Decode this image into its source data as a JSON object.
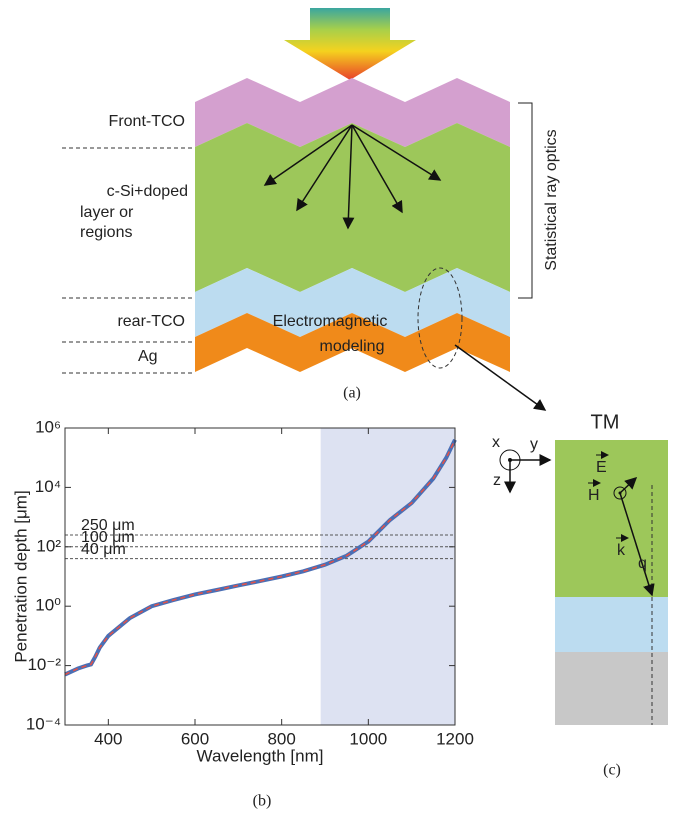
{
  "diagram_a": {
    "labels": [
      "Front-TCO",
      "c-Si+doped",
      "layer or",
      "regions",
      "rear-TCO",
      "Ag"
    ],
    "bracket_label": "Statistical ray optics",
    "em_label": [
      "Electromagnetic",
      "modeling"
    ],
    "caption": "(a)"
  },
  "chart_data": {
    "type": "line",
    "title": null,
    "x_label": "Wavelength [nm]",
    "y_label": "Penetration depth [μm]",
    "x": [
      300,
      330,
      350,
      360,
      370,
      380,
      400,
      450,
      500,
      550,
      600,
      650,
      700,
      750,
      800,
      850,
      900,
      950,
      1000,
      1050,
      1100,
      1150,
      1180,
      1200
    ],
    "values": [
      0.005,
      0.008,
      0.01,
      0.011,
      0.02,
      0.04,
      0.1,
      0.4,
      1,
      1.6,
      2.5,
      3.5,
      5,
      7,
      10,
      15,
      25,
      50,
      150,
      800,
      3000,
      20000,
      100000,
      400000
    ],
    "color": "#4a6fb5",
    "dash_color": "#e0524a",
    "xlim": [
      300,
      1200
    ],
    "xticks": [
      400,
      600,
      800,
      1000,
      1200
    ],
    "ylim": [
      0.0001,
      1000000
    ],
    "log_y": true,
    "yticks": [
      {
        "value": 0.0001,
        "label": "10⁻⁴"
      },
      {
        "value": 0.01,
        "label": "10⁻²"
      },
      {
        "value": 1,
        "label": "10⁰"
      },
      {
        "value": 100,
        "label": "10²"
      },
      {
        "value": 10000,
        "label": "10⁴"
      },
      {
        "value": 1000000,
        "label": "10⁶"
      }
    ],
    "shaded_xrange": [
      890,
      1200
    ],
    "shade_color": "#dde2f2",
    "annotations": [
      {
        "value": 250,
        "label": "250 μm"
      },
      {
        "value": 100,
        "label": "100 μm"
      },
      {
        "value": 40,
        "label": "40 μm"
      }
    ],
    "caption": "(b)"
  },
  "diagram_c": {
    "title": "TM",
    "axes": [
      "x",
      "y",
      "z"
    ],
    "vectors": [
      "E",
      "H",
      "k"
    ],
    "angle": "q",
    "caption": "(c)"
  }
}
